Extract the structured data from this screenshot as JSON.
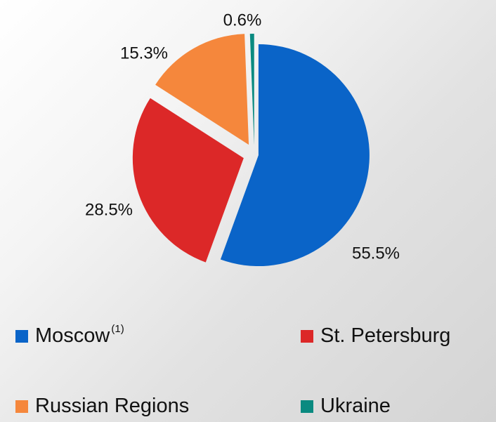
{
  "chart_data": {
    "type": "pie",
    "categories": [
      "Moscow",
      "St. Petersburg",
      "Russian Regions",
      "Ukraine"
    ],
    "label_superscripts": [
      "(1)",
      null,
      null,
      null
    ],
    "values": [
      55.5,
      28.5,
      15.3,
      0.6
    ],
    "value_labels": [
      "55.5%",
      "28.5%",
      "15.3%",
      "0.6%"
    ],
    "colors": [
      "#0a64c8",
      "#dc2828",
      "#f5873c",
      "#0a8a80"
    ]
  }
}
